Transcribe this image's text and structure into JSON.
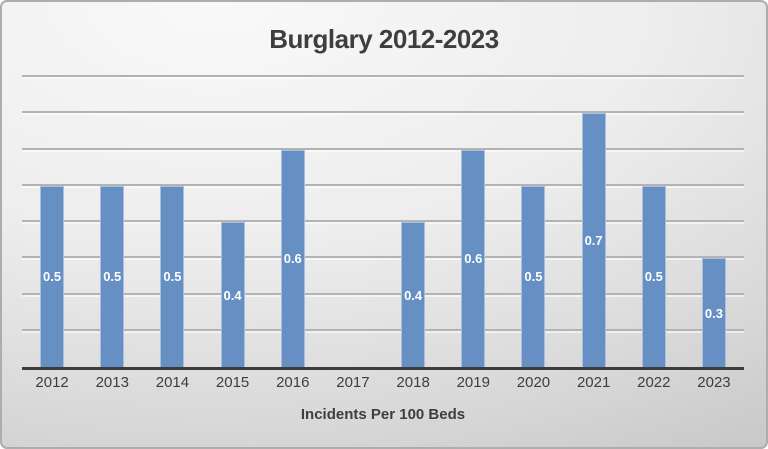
{
  "chart_data": {
    "type": "bar",
    "title": "Burglary 2012-2023",
    "xlabel": "Incidents Per 100 Beds",
    "ylabel": "",
    "categories": [
      "2012",
      "2013",
      "2014",
      "2015",
      "2016",
      "2017",
      "2018",
      "2019",
      "2020",
      "2021",
      "2022",
      "2023"
    ],
    "values": [
      0.5,
      0.5,
      0.5,
      0.4,
      0.6,
      null,
      0.4,
      0.6,
      0.5,
      0.7,
      0.5,
      0.3
    ],
    "data_labels": [
      "0.5",
      "0.5",
      "0.5",
      "0.4",
      "0.6",
      "",
      "0.4",
      "0.6",
      "0.5",
      "0.7",
      "0.5",
      "0.3"
    ],
    "data_label_position": "center",
    "ylim": [
      0,
      0.8
    ],
    "gridline_interval": 0.1,
    "grid": true,
    "legend_position": "none",
    "y_axis_labels_visible": false
  },
  "style": {
    "bar_color": "#6690c4",
    "bar_edge_highlight": "#a8c0de",
    "data_label_color": "#ffffff",
    "title_color": "#3e3e3e",
    "tick_label_color": "#3e3e3e",
    "gridline_color": "#b3b3b3",
    "axis_line_color": "#3c3c3c",
    "background_top": "#f9f9f9",
    "background_bottom": "#c2c2c2"
  }
}
